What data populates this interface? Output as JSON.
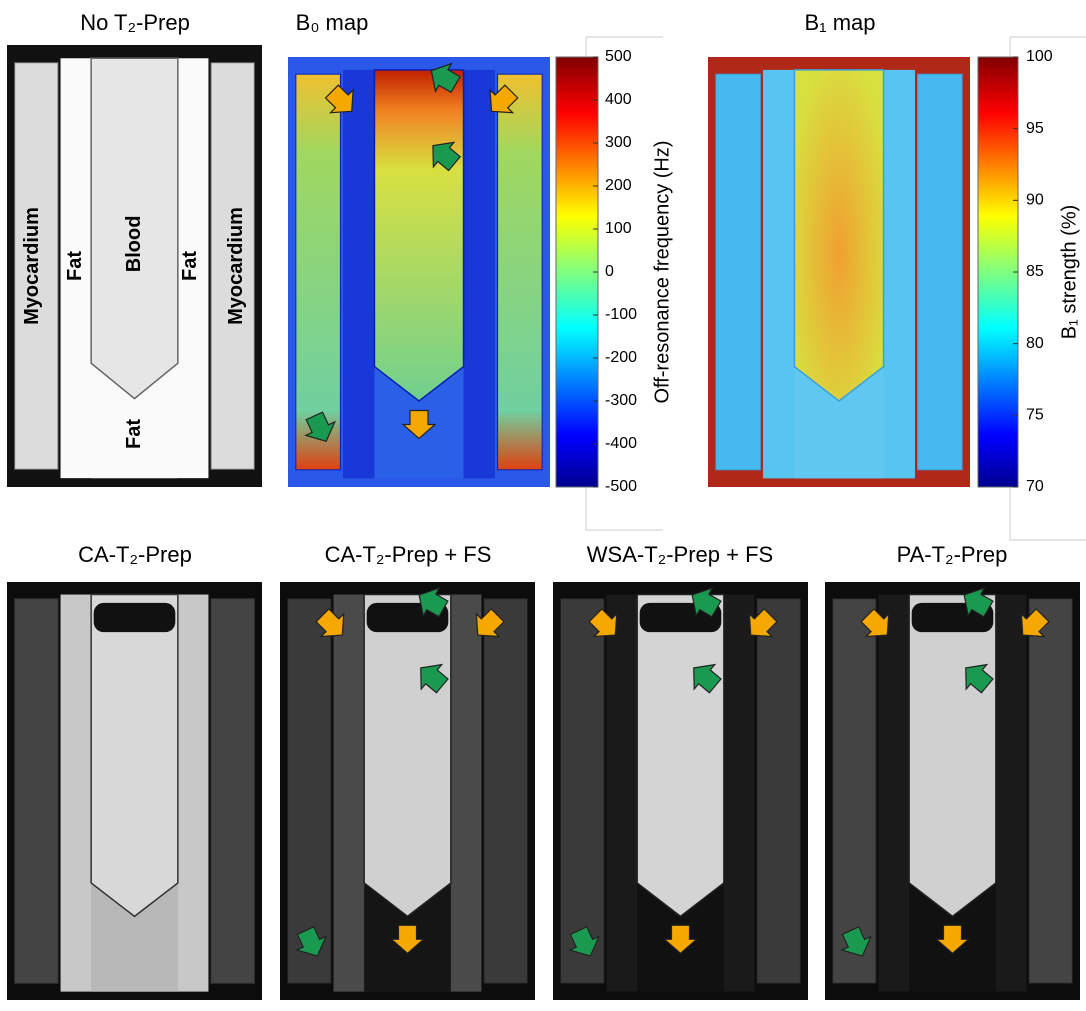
{
  "panels": [
    {
      "title": "No T₂-Prep",
      "labels": [
        "Myocardium",
        "Fat",
        "Blood",
        "Fat",
        "Myocardium",
        "Fat"
      ]
    },
    {
      "title": "B₀ map"
    },
    {
      "title": "B₁ map"
    },
    {
      "title": "CA-T₂-Prep"
    },
    {
      "title": "CA-T₂-Prep + FS"
    },
    {
      "title": "WSA-T₂-Prep + FS"
    },
    {
      "title": "PA-T₂-Prep"
    }
  ],
  "colorbars": [
    {
      "label": "Off-resonance frequency (Hz)",
      "lim": [
        -500,
        500
      ],
      "ticks": [
        500,
        400,
        300,
        200,
        100,
        0,
        -100,
        -200,
        -300,
        -400,
        -500
      ]
    },
    {
      "label": "B₁ strength (%)",
      "lim": [
        70,
        100
      ],
      "ticks": [
        100,
        95,
        90,
        85,
        80,
        75,
        70
      ]
    }
  ]
}
